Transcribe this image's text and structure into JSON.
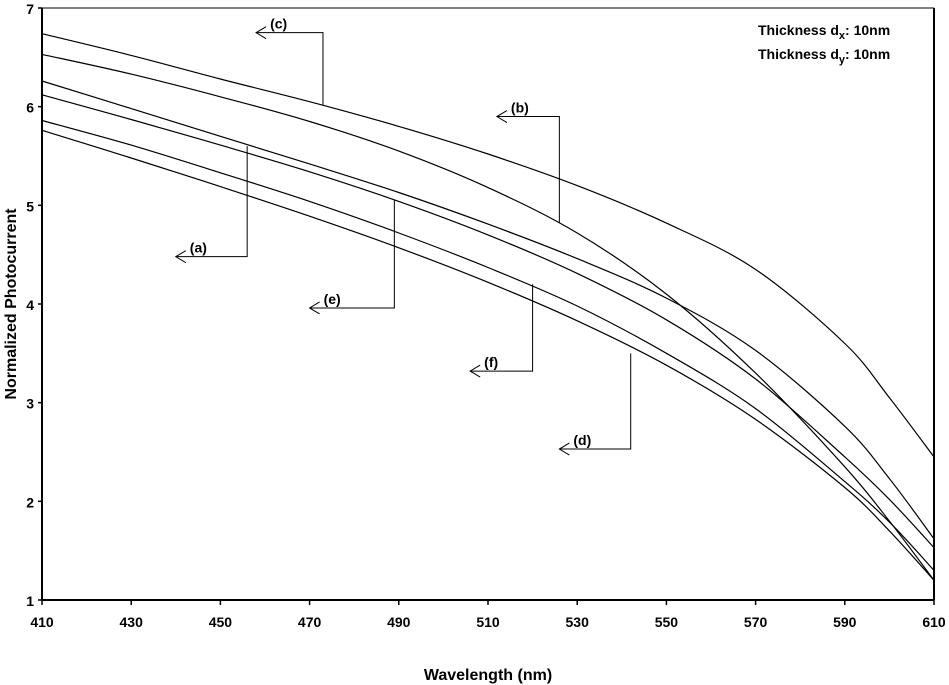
{
  "chart_data": {
    "type": "line",
    "title": "",
    "xlabel": "Wavelength (nm)",
    "ylabel": "Normalized Photocurrent",
    "xlim": [
      410,
      610
    ],
    "ylim": [
      1,
      7
    ],
    "x_ticks": [
      410,
      430,
      450,
      470,
      490,
      510,
      530,
      550,
      570,
      590,
      610
    ],
    "y_ticks": [
      1,
      2,
      3,
      4,
      5,
      6,
      7
    ],
    "grid": false,
    "legend": {
      "placement": "top-right",
      "lines": [
        {
          "prefix": "Thickness d",
          "sub": "x",
          "suffix": ": 10nm"
        },
        {
          "prefix": "Thickness d",
          "sub": "y",
          "suffix": ": 10nm"
        }
      ]
    },
    "series": [
      {
        "name": "(c)",
        "x": [
          410,
          430,
          450,
          470,
          490,
          510,
          530,
          550,
          570,
          590,
          600,
          610
        ],
        "y": [
          6.74,
          6.52,
          6.28,
          6.05,
          5.8,
          5.52,
          5.2,
          4.82,
          4.35,
          3.6,
          3.05,
          2.45
        ]
      },
      {
        "name": "(b)",
        "x": [
          410,
          430,
          450,
          470,
          490,
          510,
          530,
          550,
          570,
          590,
          600,
          610
        ],
        "y": [
          6.53,
          6.33,
          6.1,
          5.85,
          5.55,
          5.18,
          4.72,
          4.1,
          3.3,
          2.35,
          1.8,
          1.2
        ]
      },
      {
        "name": "(a)",
        "x": [
          410,
          430,
          450,
          470,
          490,
          510,
          530,
          550,
          570,
          590,
          600,
          610
        ],
        "y": [
          6.26,
          5.98,
          5.7,
          5.42,
          5.13,
          4.81,
          4.46,
          4.06,
          3.53,
          2.76,
          2.23,
          1.62
        ]
      },
      {
        "name": "(e)",
        "x": [
          410,
          430,
          450,
          470,
          490,
          510,
          530,
          550,
          570,
          590,
          600,
          610
        ],
        "y": [
          6.12,
          5.87,
          5.61,
          5.34,
          5.04,
          4.7,
          4.31,
          3.84,
          3.24,
          2.45,
          2.02,
          1.53
        ]
      },
      {
        "name": "(f)",
        "x": [
          410,
          430,
          450,
          470,
          490,
          510,
          530,
          550,
          570,
          590,
          600,
          610
        ],
        "y": [
          5.86,
          5.61,
          5.33,
          5.04,
          4.72,
          4.37,
          3.98,
          3.5,
          2.94,
          2.2,
          1.79,
          1.3
        ]
      },
      {
        "name": "(d)",
        "x": [
          410,
          430,
          450,
          470,
          490,
          510,
          530,
          550,
          570,
          590,
          600,
          610
        ],
        "y": [
          5.76,
          5.48,
          5.19,
          4.89,
          4.57,
          4.22,
          3.83,
          3.38,
          2.83,
          2.14,
          1.7,
          1.2
        ]
      }
    ],
    "annotations": [
      {
        "label": "(c)",
        "target": [
          473,
          6.02
        ],
        "elbow_x": 473,
        "arrow_end": [
          458,
          6.75
        ]
      },
      {
        "label": "(b)",
        "target": [
          526,
          4.82
        ],
        "elbow_x": 526,
        "arrow_end": [
          512,
          5.9
        ]
      },
      {
        "label": "(a)",
        "target": [
          456,
          5.6
        ],
        "elbow_x": 456,
        "arrow_end": [
          440,
          4.48
        ]
      },
      {
        "label": "(e)",
        "target": [
          489,
          5.05
        ],
        "elbow_x": 489,
        "arrow_end": [
          470,
          3.96
        ]
      },
      {
        "label": "(f)",
        "target": [
          520,
          4.2
        ],
        "elbow_x": 520,
        "arrow_end": [
          506,
          3.32
        ]
      },
      {
        "label": "(d)",
        "target": [
          542,
          3.5
        ],
        "elbow_x": 542,
        "arrow_end": [
          526,
          2.53
        ]
      }
    ]
  }
}
